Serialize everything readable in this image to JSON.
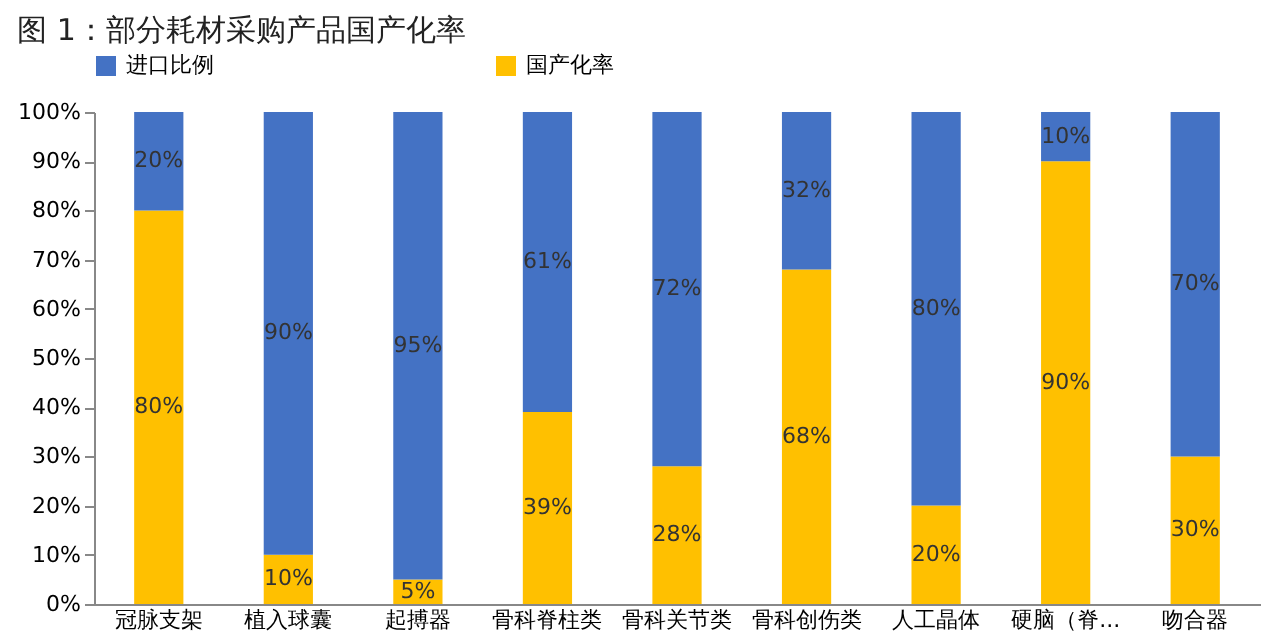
{
  "chart_data": {
    "type": "bar",
    "title": "图 1：部分耗材采购产品国产化率",
    "categories": [
      "冠脉支架",
      "植入球囊",
      "起搏器",
      "骨科脊柱类",
      "骨科关节类",
      "骨科创伤类",
      "人工晶体",
      "硬脑（脊...",
      "吻合器"
    ],
    "series": [
      {
        "name": "国产化率",
        "color": "#ffc000",
        "values": [
          80,
          10,
          5,
          39,
          28,
          68,
          20,
          90,
          30
        ],
        "value_labels": [
          "80%",
          "10%",
          "5%",
          "39%",
          "28%",
          "68%",
          "20%",
          "90%",
          "30%"
        ]
      },
      {
        "name": "进口比例",
        "color": "#4472c4",
        "values": [
          20,
          90,
          95,
          61,
          72,
          32,
          80,
          10,
          70
        ],
        "value_labels": [
          "20%",
          "90%",
          "95%",
          "61%",
          "72%",
          "32%",
          "80%",
          "10%",
          "70%"
        ]
      }
    ],
    "stacked": true,
    "legend": "top",
    "grid": false,
    "ylim": [
      0,
      100
    ],
    "yticks": [
      {
        "value": 0,
        "label": "0%"
      },
      {
        "value": 10,
        "label": "10%"
      },
      {
        "value": 20,
        "label": "20%"
      },
      {
        "value": 30,
        "label": "30%"
      },
      {
        "value": 40,
        "label": "40%"
      },
      {
        "value": 50,
        "label": "50%"
      },
      {
        "value": 60,
        "label": "60%"
      },
      {
        "value": 70,
        "label": "70%"
      },
      {
        "value": 80,
        "label": "80%"
      },
      {
        "value": 90,
        "label": "90%"
      },
      {
        "value": 100,
        "label": "100%"
      }
    ]
  }
}
